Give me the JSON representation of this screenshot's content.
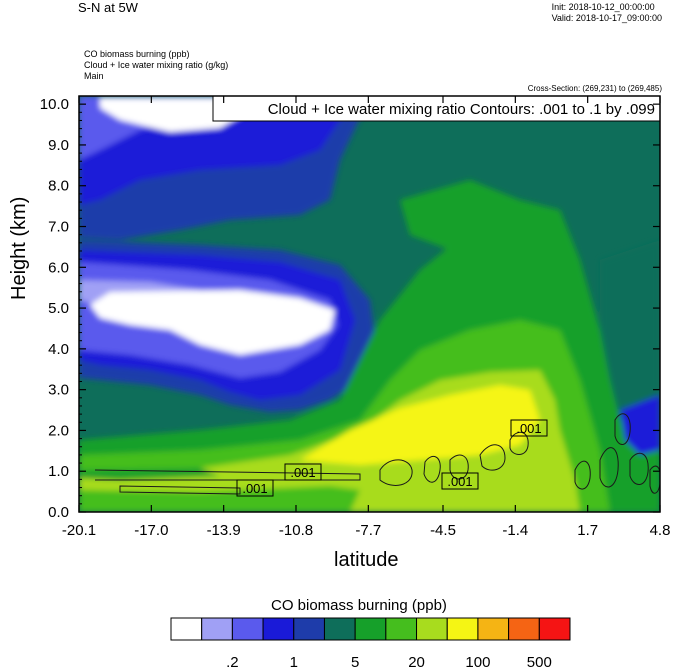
{
  "header": {
    "title": "S-N at 5W",
    "init": "Init: 2018-10-12_00:00:00",
    "valid": "Valid: 2018-10-17_09:00:00",
    "fields": [
      "CO biomass burning   (ppb)",
      "Cloud + Ice water mixing ratio   (g/kg)",
      "Main"
    ],
    "cross_section": "Cross-Section: (269,231) to (269,485)"
  },
  "chart_data": {
    "type": "heatmap",
    "title": "Cloud + Ice water mixing ratio Contours: .001 to .1 by .099",
    "xlabel": "latitude",
    "ylabel": "Height (km)",
    "x_ticks": [
      "-20.1",
      "-17.0",
      "-13.9",
      "-10.8",
      "-7.7",
      "-4.5",
      "-1.4",
      "1.7",
      "4.8"
    ],
    "x_range": [
      -20.1,
      4.8
    ],
    "y_ticks": [
      "0.0",
      "1.0",
      "2.0",
      "3.0",
      "4.0",
      "5.0",
      "6.0",
      "7.0",
      "8.0",
      "9.0",
      "10.0"
    ],
    "y_range": [
      0,
      10.2
    ],
    "contour_labels": [
      ".001",
      ".001",
      ".001",
      ".001"
    ],
    "colorbar": {
      "title": "CO biomass burning  (ppb)",
      "labels": [
        ".2",
        "1",
        "5",
        "20",
        "100",
        "500"
      ],
      "colors": [
        "#ffffff",
        "#a0a0f5",
        "#5a5aed",
        "#1a1ad8",
        "#1e3caa",
        "#0e6e5a",
        "#16a02a",
        "#45be1e",
        "#a8dc1e",
        "#f5f514",
        "#f5b414",
        "#f56414",
        "#f51414"
      ]
    }
  }
}
